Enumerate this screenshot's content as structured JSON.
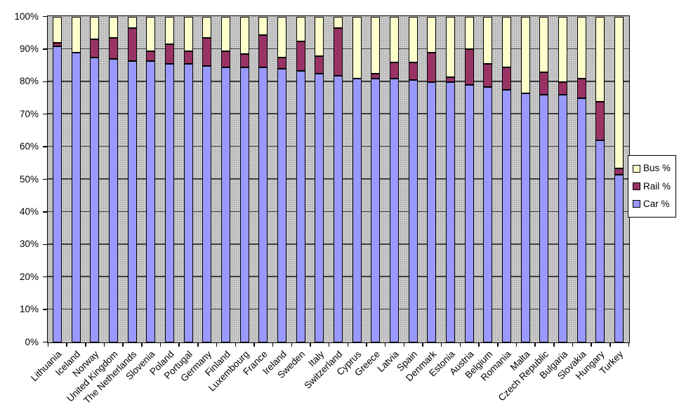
{
  "chart_data": {
    "type": "bar",
    "stacking": "percent",
    "title": "",
    "xlabel": "",
    "ylabel": "",
    "categories": [
      "Lithuania",
      "Iceland",
      "Norway",
      "United Kingdom",
      "The Netherlands",
      "Slovenia",
      "Poland",
      "Portugal",
      "Germany",
      "Finland",
      "Luxembourg",
      "France",
      "Ireland",
      "Sweden",
      "Italy",
      "Switzerland",
      "Cyprus",
      "Greece",
      "Latvia",
      "Spain",
      "Denmark",
      "Estonia",
      "Austria",
      "Belgium",
      "Romania",
      "Malta",
      "Czech Republic",
      "Bulgaria",
      "Slovakia",
      "Hungary",
      "Turkey"
    ],
    "series": [
      {
        "key": "car",
        "name": "Car %",
        "color": "#9999FF",
        "values": [
          91,
          89,
          87.5,
          87,
          86.5,
          86.5,
          85.5,
          85.5,
          85,
          84.5,
          84.5,
          84.5,
          84,
          83.5,
          82.5,
          82,
          81,
          81,
          81,
          80.5,
          80,
          80,
          79,
          78.5,
          77.5,
          76.5,
          76,
          76,
          75,
          62,
          51.5
        ]
      },
      {
        "key": "rail",
        "name": "Rail %",
        "color": "#993366",
        "values": [
          1,
          0,
          5.5,
          6.5,
          10,
          3,
          6,
          4,
          8.5,
          5,
          4,
          10,
          3.5,
          9,
          5.5,
          14.5,
          0,
          1.5,
          5,
          5.5,
          9,
          1.5,
          11,
          7,
          7,
          0,
          7,
          4,
          6,
          12,
          2
        ]
      },
      {
        "key": "bus",
        "name": "Bus %",
        "color": "#FFFFCC",
        "values": [
          8,
          11,
          7,
          6.5,
          3.5,
          10.5,
          8.5,
          10.5,
          6.5,
          10.5,
          11.5,
          5.5,
          12.5,
          7.5,
          12,
          3.5,
          19,
          17.5,
          14,
          14,
          11,
          18.5,
          10,
          14.5,
          15.5,
          23.5,
          17,
          20,
          19,
          26,
          46.5
        ]
      }
    ],
    "legend": {
      "position": "right",
      "entries": [
        "Bus %",
        "Rail %",
        "Car %"
      ]
    },
    "y_axis": {
      "min": 0,
      "max": 100,
      "step": 10,
      "grid": true,
      "ticks": [
        "100%",
        "90%",
        "80%",
        "70%",
        "60%",
        "50%",
        "40%",
        "30%",
        "20%",
        "10%",
        "0%"
      ]
    },
    "plot_style": {
      "background": "#C9C9C9",
      "dot_color": "#8D8D8D",
      "gridline_color": "#3D3D3D",
      "bar_outline": "#000000"
    }
  }
}
